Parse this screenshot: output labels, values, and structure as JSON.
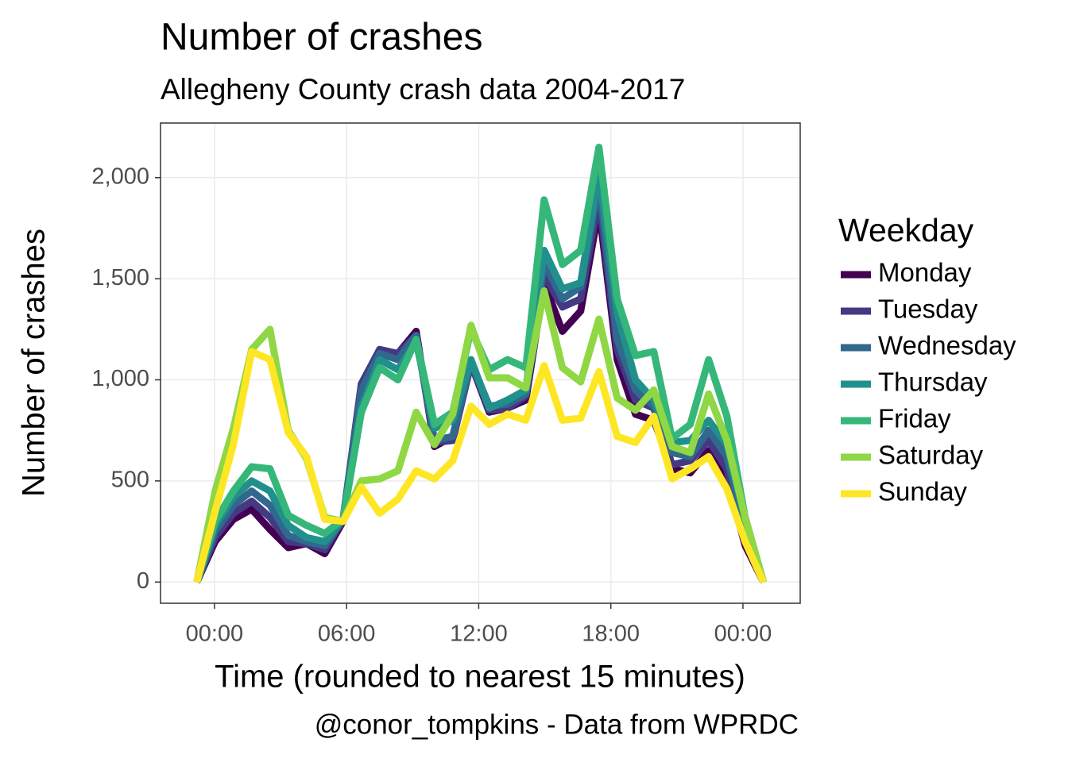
{
  "chart_data": {
    "type": "line",
    "title": "Number of crashes",
    "subtitle": "Allegheny County crash data 2004-2017",
    "x_label": "Time (rounded to nearest 15 minutes)",
    "y_label": "Number of crashes",
    "caption": "@conor_tompkins - Data from WPRDC",
    "legend_title": "Weekday",
    "legend_position": "right",
    "grid": true,
    "x": [
      -0.8,
      0.03,
      0.86,
      1.69,
      2.52,
      3.35,
      4.18,
      5.01,
      5.84,
      6.67,
      7.5,
      8.33,
      9.16,
      9.99,
      10.82,
      11.65,
      12.48,
      13.31,
      14.14,
      14.97,
      15.8,
      16.63,
      17.46,
      18.29,
      19.12,
      19.95,
      20.78,
      21.61,
      22.44,
      23.27,
      24.1,
      24.93
    ],
    "xlim": [
      -2.45,
      26.6
    ],
    "xticks": [
      {
        "value": 0,
        "label": "00:00"
      },
      {
        "value": 6,
        "label": "06:00"
      },
      {
        "value": 12,
        "label": "12:00"
      },
      {
        "value": 18,
        "label": "18:00"
      },
      {
        "value": 24,
        "label": "00:00"
      }
    ],
    "ylim": [
      -105,
      2270
    ],
    "yticks": [
      0,
      500,
      {
        "value": 1000,
        "label": "1,000"
      },
      {
        "value": 1500,
        "label": "1,500"
      },
      {
        "value": 2000,
        "label": "2,000"
      }
    ],
    "series": [
      {
        "name": "Monday",
        "color": "#440154",
        "values": [
          0,
          200,
          310,
          360,
          260,
          170,
          190,
          140,
          300,
          970,
          1140,
          1130,
          1240,
          670,
          720,
          1080,
          840,
          860,
          900,
          1480,
          1240,
          1340,
          1850,
          1100,
          830,
          800,
          560,
          540,
          650,
          520,
          180,
          0
        ]
      },
      {
        "name": "Tuesday",
        "color": "#443983",
        "values": [
          0,
          220,
          340,
          400,
          320,
          200,
          190,
          160,
          310,
          980,
          1150,
          1130,
          1220,
          690,
          700,
          1080,
          850,
          860,
          920,
          1520,
          1360,
          1400,
          1900,
          1150,
          900,
          860,
          580,
          600,
          700,
          560,
          200,
          0
        ]
      },
      {
        "name": "Wednesday",
        "color": "#31688e",
        "values": [
          0,
          250,
          380,
          450,
          380,
          230,
          200,
          180,
          310,
          950,
          1130,
          1100,
          1220,
          700,
          720,
          1090,
          870,
          880,
          930,
          1580,
          1400,
          1460,
          1970,
          1200,
          950,
          870,
          640,
          620,
          750,
          620,
          260,
          0
        ]
      },
      {
        "name": "Thursday",
        "color": "#21908d",
        "values": [
          0,
          280,
          420,
          500,
          450,
          280,
          220,
          200,
          310,
          860,
          1100,
          1050,
          1190,
          760,
          800,
          1100,
          860,
          900,
          950,
          1640,
          1450,
          1480,
          2030,
          1330,
          1000,
          900,
          690,
          700,
          800,
          680,
          300,
          0
        ]
      },
      {
        "name": "Friday",
        "color": "#35b779",
        "values": [
          0,
          300,
          450,
          570,
          560,
          330,
          280,
          240,
          310,
          840,
          1060,
          1000,
          1200,
          780,
          840,
          1250,
          1050,
          1100,
          1060,
          1890,
          1570,
          1640,
          2150,
          1400,
          1120,
          1140,
          710,
          780,
          1100,
          820,
          320,
          0
        ]
      },
      {
        "name": "Saturday",
        "color": "#8fd744",
        "values": [
          0,
          450,
          760,
          1150,
          1250,
          750,
          610,
          320,
          300,
          500,
          510,
          550,
          840,
          680,
          830,
          1270,
          1010,
          1010,
          960,
          1440,
          1060,
          990,
          1300,
          910,
          850,
          950,
          670,
          640,
          930,
          700,
          320,
          0
        ]
      },
      {
        "name": "Sunday",
        "color": "#fde725",
        "values": [
          0,
          350,
          680,
          1140,
          1100,
          740,
          620,
          310,
          300,
          470,
          340,
          410,
          550,
          510,
          600,
          870,
          780,
          830,
          800,
          1070,
          800,
          810,
          1040,
          720,
          690,
          820,
          510,
          560,
          620,
          460,
          200,
          0
        ]
      }
    ]
  }
}
